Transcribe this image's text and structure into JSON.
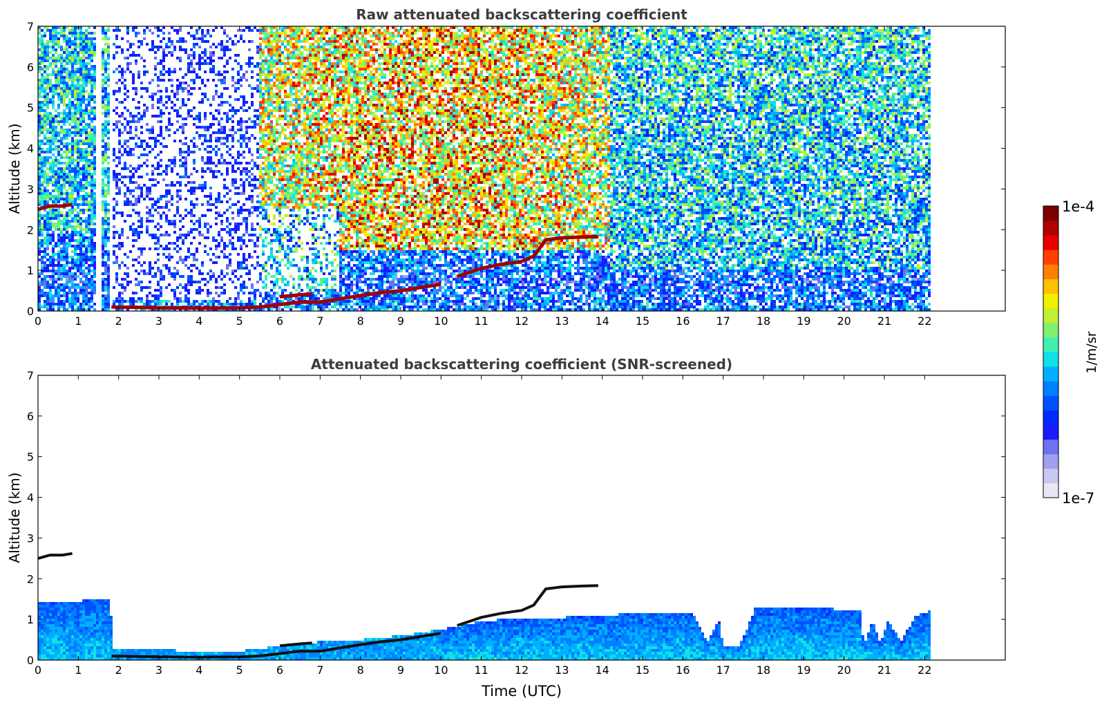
{
  "chart_data": [
    {
      "type": "heatmap",
      "title": "Raw attenuated backscattering coefficient",
      "xlabel": "",
      "ylabel": "Altitude (km)",
      "xlim": [
        0,
        24
      ],
      "ylim": [
        0,
        7
      ],
      "xticks": [
        0,
        1,
        2,
        3,
        4,
        5,
        6,
        7,
        8,
        9,
        10,
        11,
        12,
        13,
        14,
        15,
        16,
        17,
        18,
        19,
        20,
        21,
        22
      ],
      "yticks": [
        0,
        1,
        2,
        3,
        4,
        5,
        6,
        7
      ],
      "data_extent_x": [
        0,
        22.15
      ],
      "gaps": [
        [
          1.43,
          1.55
        ],
        [
          1.75,
          1.82
        ]
      ],
      "features": [
        {
          "name": "surface/low layer",
          "points": [
            [
              1.82,
              0.1
            ],
            [
              3,
              0.08
            ],
            [
              4,
              0.07
            ],
            [
              5,
              0.08
            ],
            [
              5.5,
              0.1
            ],
            [
              6,
              0.16
            ],
            [
              6.5,
              0.22
            ],
            [
              7,
              0.22
            ],
            [
              7.5,
              0.3
            ],
            [
              8,
              0.38
            ],
            [
              8.5,
              0.45
            ],
            [
              9,
              0.5
            ],
            [
              9.5,
              0.58
            ],
            [
              10,
              0.66
            ]
          ]
        },
        {
          "name": "upper layer",
          "points": [
            [
              6.0,
              0.35
            ],
            [
              6.5,
              0.4
            ],
            [
              6.8,
              0.42
            ]
          ]
        },
        {
          "name": "boundary layer top",
          "points": [
            [
              10.4,
              0.85
            ],
            [
              10.7,
              0.95
            ],
            [
              11,
              1.05
            ],
            [
              11.5,
              1.15
            ],
            [
              12,
              1.22
            ],
            [
              12.3,
              1.35
            ],
            [
              12.6,
              1.75
            ],
            [
              13,
              1.8
            ],
            [
              13.5,
              1.82
            ],
            [
              13.9,
              1.83
            ]
          ]
        },
        {
          "name": "elevated layer",
          "points": [
            [
              0,
              2.5
            ],
            [
              0.3,
              2.58
            ],
            [
              0.6,
              2.58
            ],
            [
              0.85,
              2.62
            ]
          ]
        }
      ]
    },
    {
      "type": "heatmap",
      "title": "Attenuated backscattering coefficient (SNR-screened)",
      "xlabel": "Time (UTC)",
      "ylabel": "Altitude (km)",
      "xlim": [
        0,
        24
      ],
      "ylim": [
        0,
        7
      ],
      "xticks": [
        0,
        1,
        2,
        3,
        4,
        5,
        6,
        7,
        8,
        9,
        10,
        11,
        12,
        13,
        14,
        15,
        16,
        17,
        18,
        19,
        20,
        21,
        22
      ],
      "yticks": [
        0,
        1,
        2,
        3,
        4,
        5,
        6,
        7
      ],
      "data_extent_x": [
        0,
        22.15
      ],
      "boundary_layer_top": [
        [
          0,
          1.4
        ],
        [
          1.8,
          1.5
        ],
        [
          1.85,
          0.25
        ],
        [
          3,
          0.25
        ],
        [
          4,
          0.22
        ],
        [
          5,
          0.22
        ],
        [
          6,
          0.35
        ],
        [
          7,
          0.45
        ],
        [
          8,
          0.5
        ],
        [
          9,
          0.6
        ],
        [
          10,
          0.75
        ],
        [
          10.5,
          0.85
        ],
        [
          11,
          0.95
        ],
        [
          12,
          1.05
        ],
        [
          13,
          1.05
        ],
        [
          14,
          1.1
        ],
        [
          15,
          1.15
        ],
        [
          16,
          1.18
        ],
        [
          16.3,
          1.1
        ],
        [
          16.6,
          0.45
        ],
        [
          16.9,
          1.0
        ],
        [
          17.0,
          0.35
        ],
        [
          17.4,
          0.32
        ],
        [
          17.8,
          1.28
        ],
        [
          18,
          1.28
        ],
        [
          19,
          1.28
        ],
        [
          20,
          1.25
        ],
        [
          20.4,
          1.2
        ],
        [
          20.5,
          0.35
        ],
        [
          20.7,
          1.0
        ],
        [
          20.9,
          0.4
        ],
        [
          21.1,
          1.0
        ],
        [
          21.4,
          0.45
        ],
        [
          21.8,
          1.1
        ],
        [
          22.15,
          1.2
        ]
      ]
    }
  ],
  "colorbar": {
    "label": "1/m/sr",
    "max_label": "1e-4",
    "min_label": "1e-7",
    "scale": "log",
    "range": [
      1e-07,
      0.0001
    ],
    "colors": [
      "#e8e8f5",
      "#c8c8f0",
      "#a0a0ee",
      "#7070f0",
      "#1a1aff",
      "#0028ff",
      "#0050ff",
      "#0080ff",
      "#00b0ff",
      "#10e0e8",
      "#40f0b0",
      "#80f070",
      "#c0f030",
      "#f0f000",
      "#ffc000",
      "#ff8000",
      "#ff4000",
      "#e80000",
      "#b00000",
      "#7a0000"
    ]
  }
}
